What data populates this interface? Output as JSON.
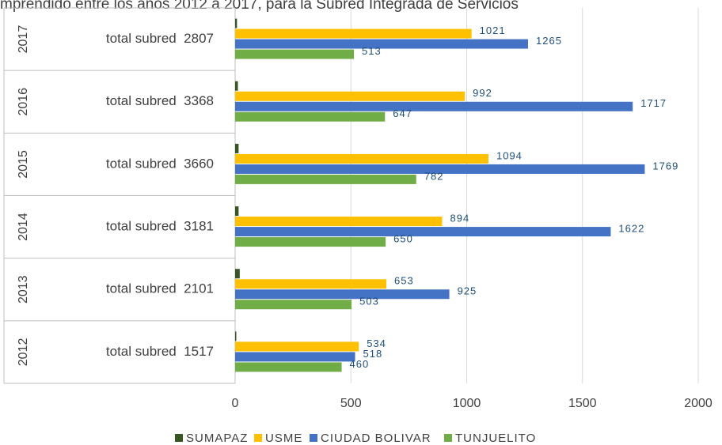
{
  "chart_data": {
    "type": "hbar",
    "title": "mprendido entre los años 2012 a 2017, para la Subred Integrada de Servicios",
    "categories": [
      "2012",
      "2013",
      "2014",
      "2015",
      "2016",
      "2017"
    ],
    "group_labels": [
      "total subred  1517",
      "total subred  2101",
      "total subred  3181",
      "total subred  3660",
      "total subred  3368",
      "total subred  2807"
    ],
    "series": [
      {
        "name": "SUMAPAZ",
        "color": "#375623",
        "values": [
          5,
          20,
          15,
          15,
          12,
          8
        ],
        "labels": false
      },
      {
        "name": "USME",
        "color": "#ffc000",
        "values": [
          534,
          653,
          894,
          1094,
          992,
          1021
        ],
        "labels": true
      },
      {
        "name": "CIUDAD BOLIVAR",
        "color": "#4472c4",
        "values": [
          518,
          925,
          1622,
          1769,
          1717,
          1265
        ],
        "labels": true
      },
      {
        "name": "TUNJUELITO",
        "color": "#70ad47",
        "values": [
          460,
          503,
          650,
          782,
          647,
          513
        ],
        "labels": true
      }
    ],
    "xlim": [
      0,
      2000
    ],
    "xticks": [
      0,
      500,
      1000,
      1500,
      2000
    ],
    "grid": true,
    "legend": "bottom"
  }
}
